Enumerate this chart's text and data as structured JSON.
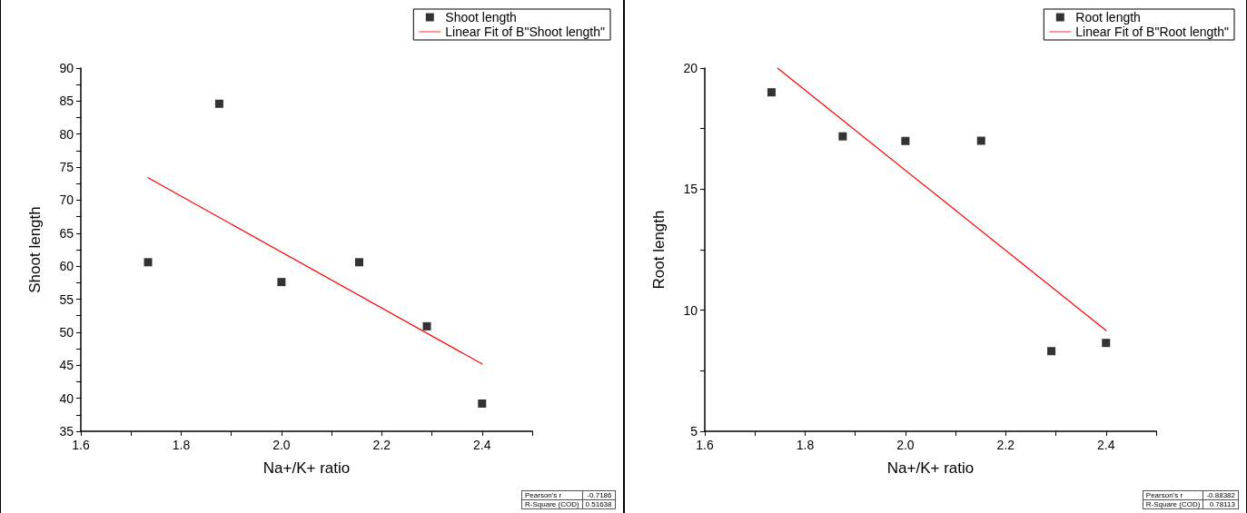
{
  "chart_data": [
    {
      "type": "scatter",
      "xlabel": "Na+/K+ ratio",
      "ylabel": "Shoot length",
      "legend": "top right",
      "grid": false,
      "marker": "square",
      "xlim": [
        1.6,
        2.5
      ],
      "xticks": [
        1.6,
        {
          "value": 1.7,
          "label": null
        },
        1.8,
        {
          "value": 1.9,
          "label": null
        },
        "2.0",
        {
          "value": 2.1,
          "label": null
        },
        2.2,
        {
          "value": 2.3,
          "label": null
        },
        2.4,
        {
          "value": 2.5,
          "label": null
        }
      ],
      "ylim": [
        35,
        90
      ],
      "yticks": [
        35,
        {
          "value": 37.5,
          "label": null
        },
        40,
        {
          "value": 42.5,
          "label": null
        },
        45,
        {
          "value": 47.5,
          "label": null
        },
        50,
        {
          "value": 52.5,
          "label": null
        },
        55,
        {
          "value": 57.5,
          "label": null
        },
        60,
        {
          "value": 62.5,
          "label": null
        },
        65,
        {
          "value": 67.5,
          "label": null
        },
        70,
        {
          "value": 72.5,
          "label": null
        },
        75,
        {
          "value": 77.5,
          "label": null
        },
        80,
        {
          "value": 82.5,
          "label": null
        },
        85,
        {
          "value": 87.5,
          "label": null
        },
        90
      ],
      "series": [
        {
          "name": "Shoot length",
          "color": "#000000",
          "x": [
            1.734,
            1.876,
            2.0,
            2.155,
            2.29,
            2.4
          ],
          "values": [
            60.6,
            84.6,
            57.6,
            60.6,
            50.9,
            39.2
          ]
        },
        {
          "name": "Linear Fit of B\"Shoot length\"",
          "type": "line",
          "color": "#ff0000",
          "marker": "none",
          "line_style": "solid",
          "x": [
            1.734,
            2.4
          ],
          "values": [
            73.4,
            45.2
          ]
        }
      ],
      "annotations": [
        "Pearson's r",
        "-0.7186",
        "R-Square (COD)",
        "0.51638"
      ]
    },
    {
      "type": "scatter",
      "xlabel": "Na+/K+ ratio",
      "ylabel": "Root length",
      "legend": "top right",
      "grid": false,
      "marker": "square",
      "xlim": [
        1.6,
        2.5
      ],
      "xticks": [
        1.6,
        {
          "value": 1.7,
          "label": null
        },
        1.8,
        {
          "value": 1.9,
          "label": null
        },
        "2.0",
        {
          "value": 2.1,
          "label": null
        },
        2.2,
        {
          "value": 2.3,
          "label": null
        },
        2.4,
        {
          "value": 2.5,
          "label": null
        }
      ],
      "ylim": [
        5,
        20
      ],
      "yticks": [
        5,
        {
          "value": 7.5,
          "label": null
        },
        10,
        {
          "value": 12.5,
          "label": null
        },
        15,
        {
          "value": 17.5,
          "label": null
        },
        20
      ],
      "series": [
        {
          "name": "Root length",
          "color": "#000000",
          "x": [
            1.733,
            1.875,
            2.0,
            2.151,
            2.291,
            2.4
          ],
          "values": [
            19.0,
            17.18,
            16.99,
            17.0,
            8.31,
            8.65
          ]
        },
        {
          "name": "Linear Fit of B\"Root length\"",
          "type": "line",
          "color": "#ff0000",
          "marker": "none",
          "line_style": "solid",
          "x": [
            1.745,
            2.4
          ],
          "values": [
            20.0,
            9.16
          ]
        }
      ],
      "annotations": [
        "Pearson's r",
        "-0.88382",
        "R-Square (COD)",
        "0.78113"
      ]
    }
  ]
}
